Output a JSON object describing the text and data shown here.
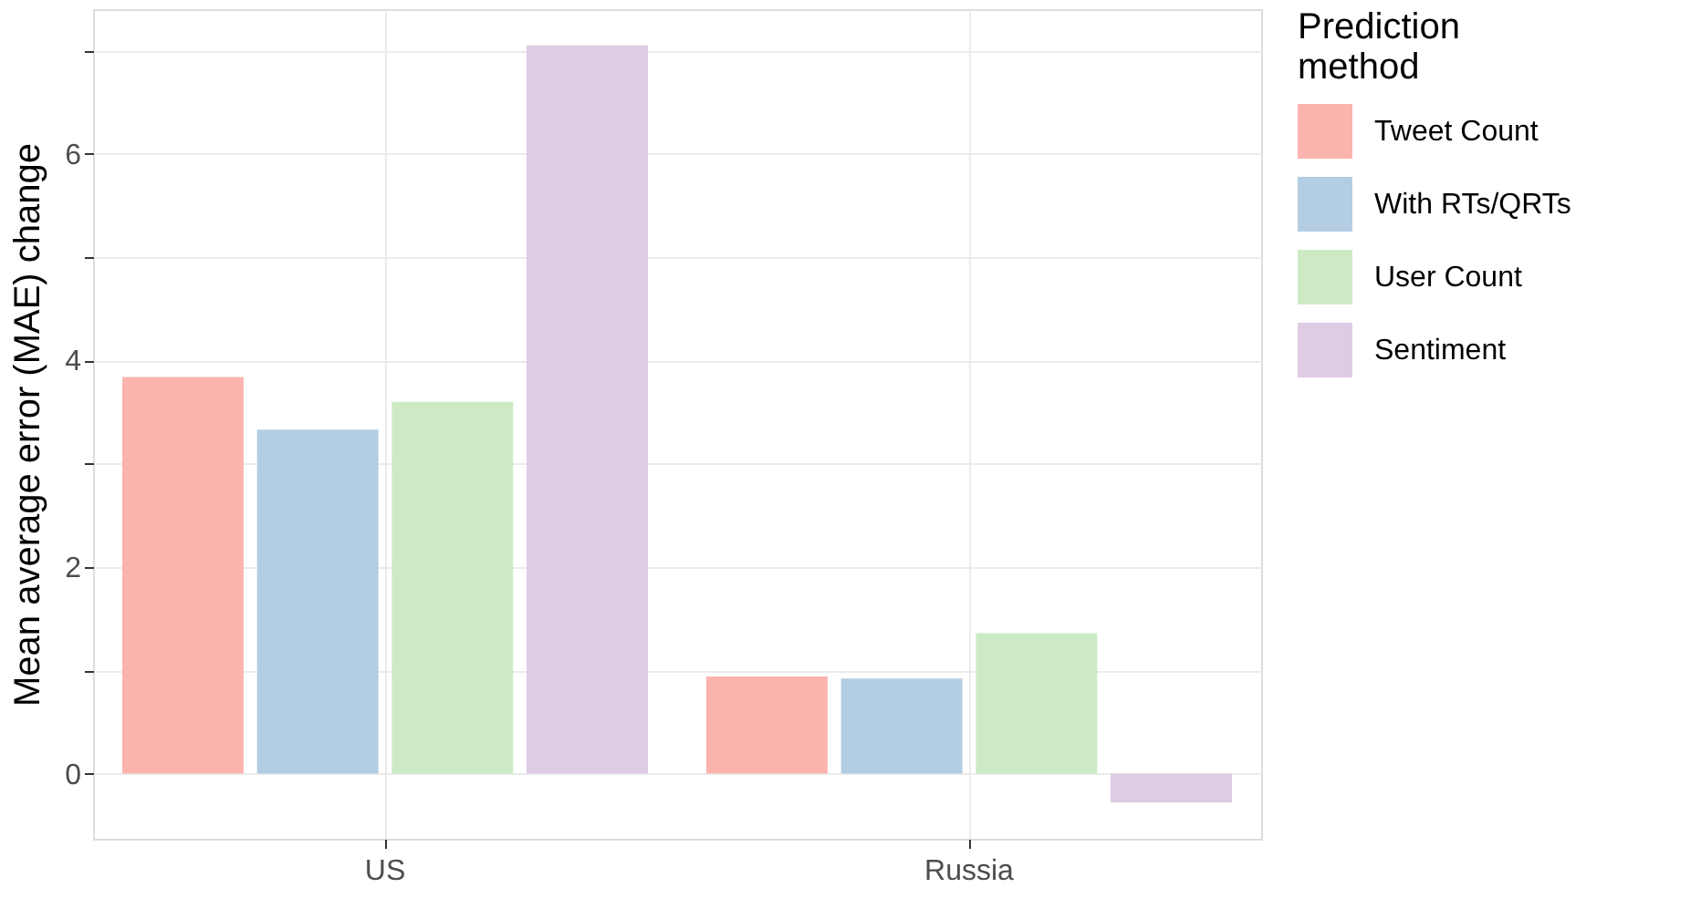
{
  "chart_data": {
    "type": "bar",
    "ylabel": "Mean average error (MAE) change",
    "legend_title": "Prediction method",
    "categories": [
      "US",
      "Russia"
    ],
    "series": [
      {
        "name": "Tweet Count",
        "color": "#fbb4ae",
        "values": [
          3.84,
          0.94
        ]
      },
      {
        "name": "With RTs/QRTs",
        "color": "#b3cde3",
        "values": [
          3.33,
          0.92
        ]
      },
      {
        "name": "User Count",
        "color": "#ccebc5",
        "values": [
          3.6,
          1.36
        ]
      },
      {
        "name": "Sentiment",
        "color": "#decbe4",
        "values": [
          7.05,
          -0.28
        ]
      }
    ],
    "ylim": [
      -0.63,
      7.4
    ],
    "yticks": [
      0,
      {
        "value": 1,
        "label": null
      },
      2,
      {
        "value": 3,
        "label": null
      },
      4,
      {
        "value": 5,
        "label": null
      },
      6,
      {
        "value": 7,
        "label": null
      }
    ],
    "grid": true,
    "legend": "right"
  }
}
